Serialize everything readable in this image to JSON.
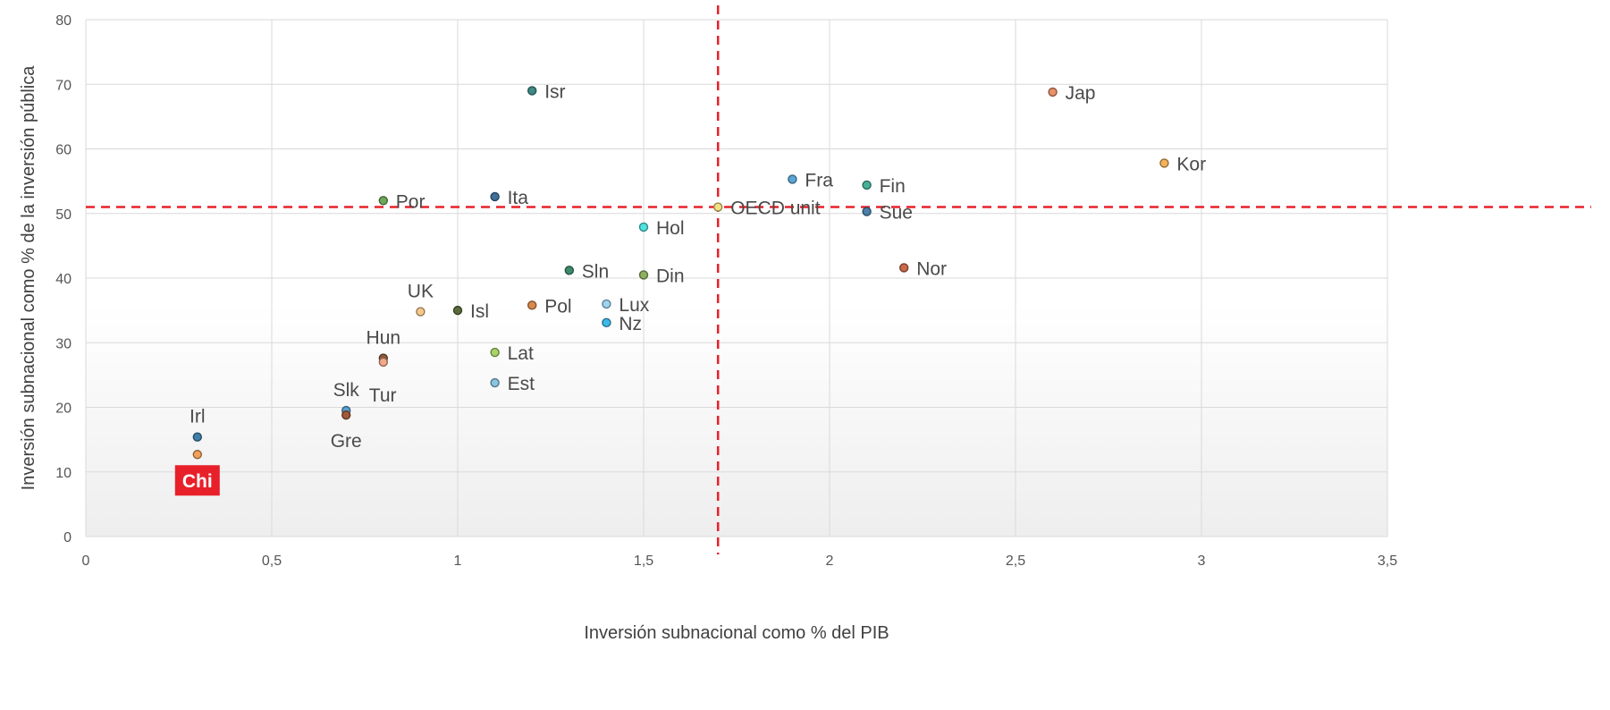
{
  "chart_data": {
    "type": "scatter",
    "xlabel": "Inversión subnacional como % del PIB",
    "ylabel": "Inversión subnacional como % de la inversión pública",
    "xlim": [
      0,
      3.5
    ],
    "ylim": [
      0,
      80
    ],
    "x_ticks": [
      "0",
      "0,5",
      "1",
      "1,5",
      "2",
      "2,5",
      "3",
      "3,5"
    ],
    "x_tick_values": [
      0,
      0.5,
      1,
      1.5,
      2,
      2.5,
      3,
      3.5
    ],
    "y_ticks": [
      "0",
      "10",
      "20",
      "30",
      "40",
      "50",
      "60",
      "70",
      "80"
    ],
    "y_tick_values": [
      0,
      10,
      20,
      30,
      40,
      50,
      60,
      70,
      80
    ],
    "grid": true,
    "reference_lines": {
      "x": 1.7,
      "y": 51,
      "color": "#e8202a",
      "style": "dashed"
    },
    "highlight_color": "#e8202a",
    "points": [
      {
        "label": "Isr",
        "x": 1.2,
        "y": 69,
        "color": "#3d8a84",
        "label_pos": "right"
      },
      {
        "label": "Jap",
        "x": 2.6,
        "y": 68.8,
        "color": "#e8906a",
        "label_pos": "right"
      },
      {
        "label": "Kor",
        "x": 2.9,
        "y": 57.8,
        "color": "#f2b25a",
        "label_pos": "right"
      },
      {
        "label": "Fra",
        "x": 1.9,
        "y": 55.3,
        "color": "#5aa6d6",
        "label_pos": "right"
      },
      {
        "label": "Fin",
        "x": 2.1,
        "y": 54.4,
        "color": "#45b09a",
        "label_pos": "right"
      },
      {
        "label": "Ita",
        "x": 1.1,
        "y": 52.6,
        "color": "#3f6f9a",
        "label_pos": "right"
      },
      {
        "label": "Por",
        "x": 0.8,
        "y": 52,
        "color": "#6ea85a",
        "label_pos": "right"
      },
      {
        "label": "OECD unit",
        "x": 1.7,
        "y": 51,
        "color": "#f2e080",
        "label_pos": "right"
      },
      {
        "label": "Sue",
        "x": 2.1,
        "y": 50.3,
        "color": "#4a7fa8",
        "label_pos": "right"
      },
      {
        "label": "Hol",
        "x": 1.5,
        "y": 47.9,
        "color": "#4fe3e0",
        "label_pos": "right"
      },
      {
        "label": "Nor",
        "x": 2.2,
        "y": 41.6,
        "color": "#c9694a",
        "label_pos": "right"
      },
      {
        "label": "Sln",
        "x": 1.3,
        "y": 41.2,
        "color": "#3d8a6a",
        "label_pos": "right"
      },
      {
        "label": "Din",
        "x": 1.5,
        "y": 40.5,
        "color": "#8fb060",
        "label_pos": "right"
      },
      {
        "label": "Lux",
        "x": 1.4,
        "y": 36,
        "color": "#9fd4ee",
        "label_pos": "right"
      },
      {
        "label": "Pol",
        "x": 1.2,
        "y": 35.8,
        "color": "#d9894a",
        "label_pos": "right"
      },
      {
        "label": "Isl",
        "x": 1.0,
        "y": 35,
        "color": "#5a6a3a",
        "label_pos": "right"
      },
      {
        "label": "UK",
        "x": 0.9,
        "y": 34.8,
        "color": "#f7c88a",
        "label_pos": "above"
      },
      {
        "label": "Nz",
        "x": 1.4,
        "y": 33.1,
        "color": "#3fb8e8",
        "label_pos": "right"
      },
      {
        "label": "Lat",
        "x": 1.1,
        "y": 28.5,
        "color": "#a9d46a",
        "label_pos": "right"
      },
      {
        "label": "Hun",
        "x": 0.8,
        "y": 27.6,
        "color": "#8a5a3a",
        "label_pos": "above"
      },
      {
        "label": "Tur",
        "x": 0.8,
        "y": 27.0,
        "color": "#f2a88a",
        "label_pos": "below-right"
      },
      {
        "label": "Est",
        "x": 1.1,
        "y": 23.8,
        "color": "#8ac4e0",
        "label_pos": "right"
      },
      {
        "label": "Slk",
        "x": 0.7,
        "y": 19.5,
        "color": "#5aa0d0",
        "label_pos": "above"
      },
      {
        "label": "Gre",
        "x": 0.7,
        "y": 18.8,
        "color": "#a05a3a",
        "label_pos": "below"
      },
      {
        "label": "Irl",
        "x": 0.3,
        "y": 15.4,
        "color": "#3f7fa8",
        "label_pos": "above"
      },
      {
        "label": "Chi",
        "x": 0.3,
        "y": 12.7,
        "color": "#f2a05a",
        "label_pos": "below-box",
        "highlight": true
      }
    ]
  }
}
